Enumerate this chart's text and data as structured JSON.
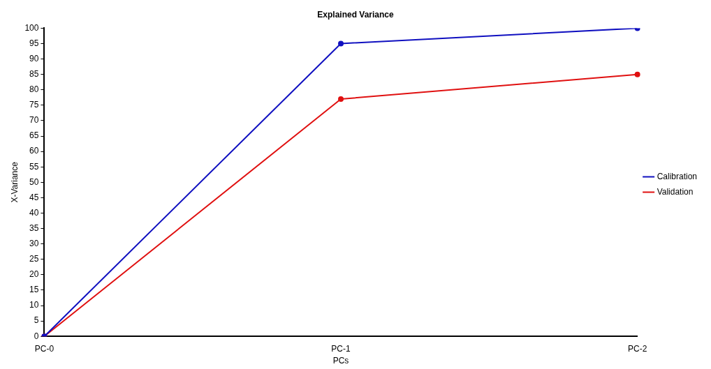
{
  "chart_data": {
    "type": "line",
    "title": "Explained Variance",
    "xlabel": "PCs",
    "ylabel": "X-Variance",
    "categories": [
      "PC-0",
      "PC-1",
      "PC-2"
    ],
    "series": [
      {
        "name": "Calibration",
        "color": "#1010c0",
        "values": [
          0,
          95,
          100
        ]
      },
      {
        "name": "Validation",
        "color": "#e01010",
        "values": [
          0,
          77,
          85
        ]
      }
    ],
    "ylim": [
      0,
      100
    ],
    "yticks": [
      0,
      5,
      10,
      15,
      20,
      25,
      30,
      35,
      40,
      45,
      50,
      55,
      60,
      65,
      70,
      75,
      80,
      85,
      90,
      95,
      100
    ],
    "grid": false,
    "legend": "right",
    "marker": "circle",
    "line_style": "solid"
  }
}
